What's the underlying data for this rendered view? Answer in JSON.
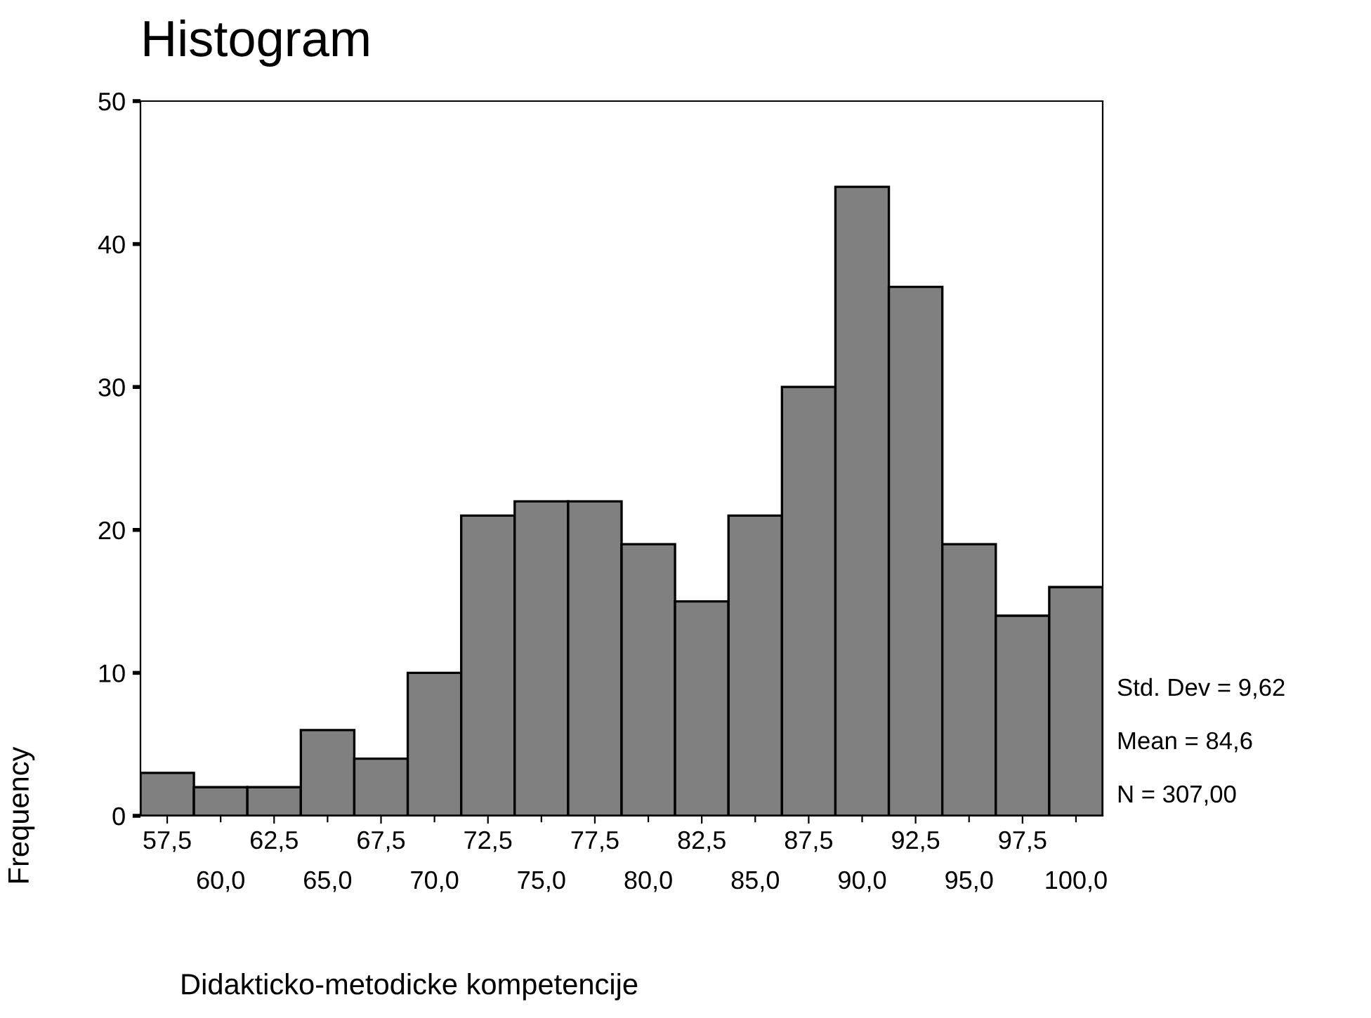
{
  "chart_data": {
    "type": "histogram",
    "title": "Histogram",
    "xlabel": "Didakticko-metodicke kompetencije",
    "ylabel": "Frequency",
    "bins": [
      56.25,
      58.75,
      61.25,
      63.75,
      66.25,
      68.75,
      71.25,
      73.75,
      76.25,
      78.75,
      81.25,
      83.75,
      86.25,
      88.75,
      91.25,
      93.75,
      96.25,
      98.75,
      101.25
    ],
    "values": [
      3,
      2,
      2,
      6,
      4,
      10,
      21,
      22,
      22,
      19,
      15,
      21,
      30,
      44,
      37,
      19,
      14,
      16
    ],
    "color": "#808080",
    "xlim": [
      56.25,
      101.25
    ],
    "xticks": [
      {
        "value": 57.5,
        "label": "57,5"
      },
      {
        "value": 62.5,
        "label": "62,5"
      },
      {
        "value": 67.5,
        "label": "67,5"
      },
      {
        "value": 72.5,
        "label": "72,5"
      },
      {
        "value": 77.5,
        "label": "77,5"
      },
      {
        "value": 82.5,
        "label": "82,5"
      },
      {
        "value": 87.5,
        "label": "87,5"
      },
      {
        "value": 92.5,
        "label": "92,5"
      },
      {
        "value": 97.5,
        "label": "97,5"
      }
    ],
    "x2lim": [
      56.25,
      101.25
    ],
    "x2ticks": [
      {
        "value": 60,
        "label": "60,0"
      },
      {
        "value": 65,
        "label": "65,0"
      },
      {
        "value": 70,
        "label": "70,0"
      },
      {
        "value": 75,
        "label": "75,0"
      },
      {
        "value": 80,
        "label": "80,0"
      },
      {
        "value": 85,
        "label": "85,0"
      },
      {
        "value": 90,
        "label": "90,0"
      },
      {
        "value": 95,
        "label": "95,0"
      },
      {
        "value": 100,
        "label": "100,0"
      }
    ],
    "ylim": [
      0,
      50
    ],
    "yticks": [
      0,
      10,
      20,
      30,
      40,
      50
    ],
    "grid": false,
    "legend": false,
    "annotations": [
      "Std. Dev = 9,62",
      "Mean = 84,6",
      "N = 307,00"
    ]
  }
}
